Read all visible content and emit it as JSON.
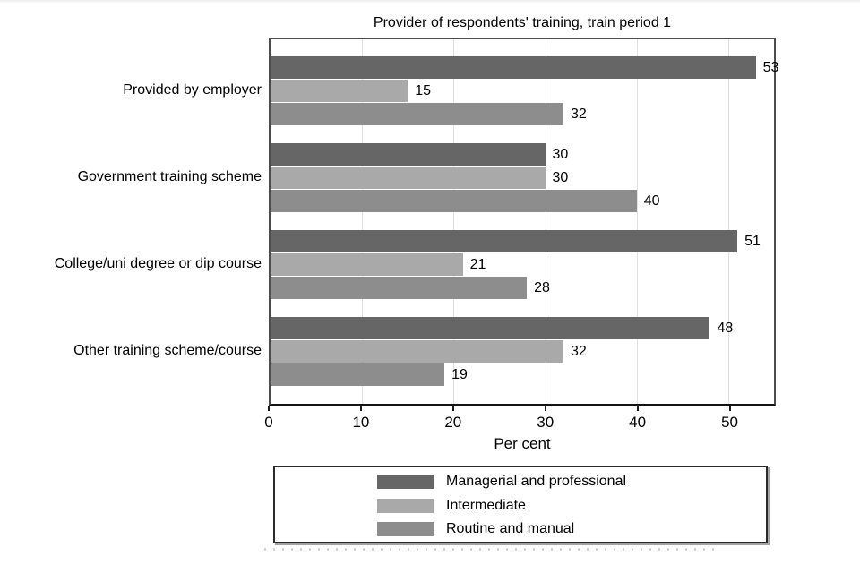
{
  "chart_data": {
    "type": "bar",
    "orientation": "horizontal",
    "title": "Provider of respondents' training, train period 1",
    "xlabel": "Per cent",
    "ylabel": "",
    "xlim": [
      0,
      55
    ],
    "xticks": [
      0,
      10,
      20,
      30,
      40,
      50
    ],
    "grid": "vertical-light",
    "legend_position": "bottom-box",
    "data_labels": "shown-at-bar-end",
    "categories": [
      "Provided by employer",
      "Government training scheme",
      "College/uni degree or dip course",
      "Other training scheme/course"
    ],
    "series": [
      {
        "name": "Managerial and professional",
        "color": "#666666",
        "values": [
          53,
          30,
          51,
          48
        ]
      },
      {
        "name": "Intermediate",
        "color": "#a9a9a9",
        "values": [
          15,
          30,
          21,
          32
        ]
      },
      {
        "name": "Routine and manual",
        "color": "#8d8d8d",
        "values": [
          32,
          40,
          28,
          19
        ]
      }
    ]
  },
  "colors": {
    "gridline": "#e0e0e0",
    "plot_border": "#4c4c4c",
    "axis_line": "#141414",
    "text": "#000000"
  }
}
